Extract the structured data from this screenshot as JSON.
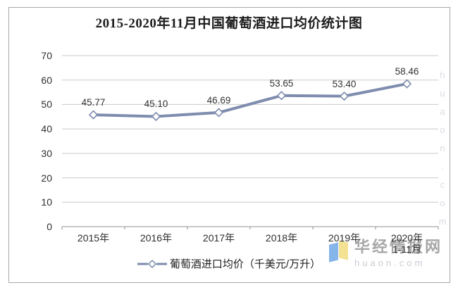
{
  "title": "2015-2020年11月中国葡萄酒进口均价统计图",
  "chart_data": {
    "type": "line",
    "title": "2015-2020年11月中国葡萄酒进口均价统计图",
    "categories": [
      "2015年",
      "2016年",
      "2017年",
      "2018年",
      "2019年",
      "2020年\n1-11月"
    ],
    "series": [
      {
        "name": "葡萄酒进口均价（千美元/万升）",
        "values": [
          45.77,
          45.1,
          46.69,
          53.65,
          53.4,
          58.46
        ],
        "data_labels": [
          "45.77",
          "45.10",
          "46.69",
          "53.65",
          "53.40",
          "58.46"
        ],
        "color": "#7e8cad",
        "marker": "open-diamond"
      }
    ],
    "xlabel": "",
    "ylabel": "",
    "ylim": [
      0,
      70
    ],
    "yticks": [
      0,
      10,
      20,
      30,
      40,
      50,
      60,
      70
    ],
    "grid": true,
    "legend_position": "bottom"
  },
  "legend": {
    "label": "葡萄酒进口均价（千美元/万升）"
  },
  "watermarks": {
    "vertical_text": "huaon.com",
    "brand_text": "华经情报网",
    "brand_domain": "huaon.com"
  },
  "colors": {
    "line": "#7e8cad",
    "grid": "#cacaca",
    "axis": "#909090",
    "frame_border": "#a9a9a9",
    "text": "#2e2e2e"
  }
}
